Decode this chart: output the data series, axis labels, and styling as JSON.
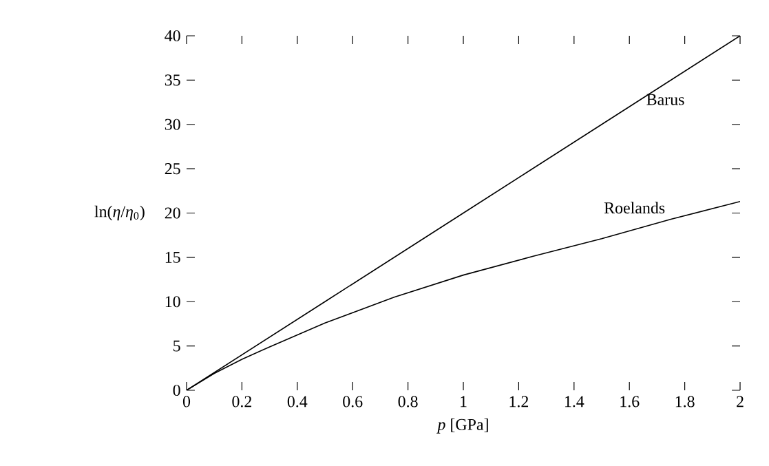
{
  "chart_data": {
    "type": "line",
    "xlabel": "*p* [GPa]",
    "ylabel": "ln(*η*/*η*$_{0}$)",
    "series": [
      {
        "name": "Barus",
        "color": "#000000",
        "x": [
          0,
          0.5,
          1,
          1.5,
          2
        ],
        "values": [
          0,
          10,
          20,
          30,
          40
        ]
      },
      {
        "name": "Roelands",
        "color": "#000000",
        "x": [
          0,
          0.1,
          0.2,
          0.3,
          0.5,
          0.75,
          1,
          1.25,
          1.5,
          1.75,
          2
        ],
        "values": [
          0,
          1.9,
          3.5,
          4.9,
          7.6,
          10.5,
          13,
          15.1,
          17.1,
          19.3,
          21.3
        ]
      }
    ],
    "xlim": [
      0,
      2
    ],
    "ylim": [
      0,
      40
    ],
    "xticks": [
      0,
      0.2,
      0.4,
      0.6,
      0.8,
      1,
      1.2,
      1.4,
      1.6,
      1.8,
      2
    ],
    "yticks": [
      0,
      5,
      10,
      15,
      20,
      25,
      30,
      35,
      40
    ]
  }
}
